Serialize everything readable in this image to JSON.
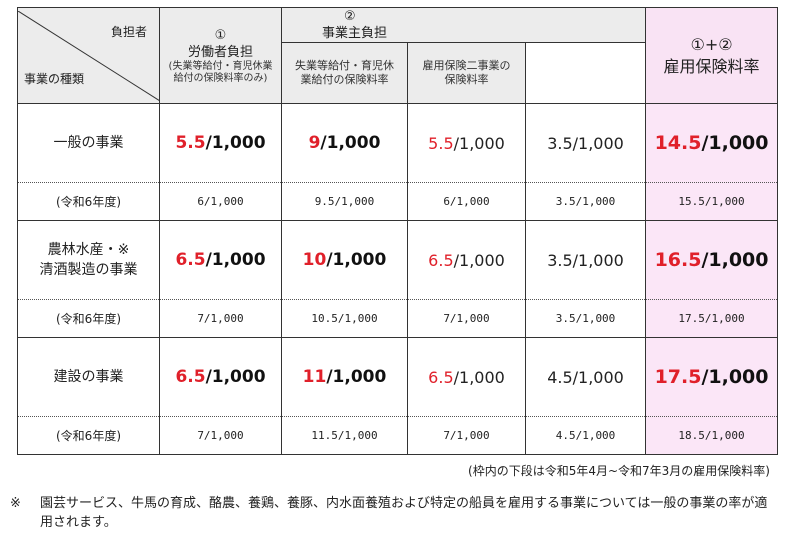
{
  "header": {
    "corner_top": "負担者",
    "corner_bottom": "事業の種類",
    "worker_num": "①",
    "worker_title": "労働者負担",
    "worker_note": "(失業等給付・育児休業給付の保険料率のみ)",
    "employer_num": "②",
    "employer_title": "事業主負担",
    "employer_sub1": "失業等給付・育児休業給付の保険料率",
    "employer_sub2": "雇用保険二事業の保険料率",
    "total_num": "①+②",
    "total_title": "雇用保険料率"
  },
  "rows": [
    {
      "category": "一般の事業",
      "worker": {
        "num": "5.5",
        "den": "/1,000"
      },
      "employer": {
        "num": "9",
        "den": "/1,000"
      },
      "emp_sub1": {
        "num": "5.5",
        "den": "/1,000"
      },
      "emp_sub2": "3.5/1,000",
      "total": {
        "num": "14.5",
        "den": "/1,000"
      },
      "prev_label": "(令和6年度)",
      "prev": [
        "6/1,000",
        "9.5/1,000",
        "6/1,000",
        "3.5/1,000",
        "15.5/1,000"
      ]
    },
    {
      "category_line1": "農林水産・※",
      "category_line2": "清酒製造の事業",
      "worker": {
        "num": "6.5",
        "den": "/1,000"
      },
      "employer": {
        "num": "10",
        "den": "/1,000"
      },
      "emp_sub1": {
        "num": "6.5",
        "den": "/1,000"
      },
      "emp_sub2": "3.5/1,000",
      "total": {
        "num": "16.5",
        "den": "/1,000"
      },
      "prev_label": "(令和6年度)",
      "prev": [
        "7/1,000",
        "10.5/1,000",
        "7/1,000",
        "3.5/1,000",
        "17.5/1,000"
      ]
    },
    {
      "category": "建設の事業",
      "worker": {
        "num": "6.5",
        "den": "/1,000"
      },
      "employer": {
        "num": "11",
        "den": "/1,000"
      },
      "emp_sub1": {
        "num": "6.5",
        "den": "/1,000"
      },
      "emp_sub2": "4.5/1,000",
      "total": {
        "num": "17.5",
        "den": "/1,000"
      },
      "prev_label": "(令和6年度)",
      "prev": [
        "7/1,000",
        "11.5/1,000",
        "7/1,000",
        "4.5/1,000",
        "18.5/1,000"
      ]
    }
  ],
  "notes": {
    "lower_row_note": "(枠内の下段は令和5年4月~令和7年3月の雇用保険料率)",
    "asterisk_mark": "※",
    "asterisk_note": "園芸サービス、牛馬の育成、酪農、養鶏、養豚、内水面養殖および特定の船員を雇用する事業については一般の事業の率が適用されます。"
  },
  "colors": {
    "highlight_red": "#e0202a",
    "total_column_bg": "#fbe6f7",
    "header_bg": "#ececec"
  }
}
